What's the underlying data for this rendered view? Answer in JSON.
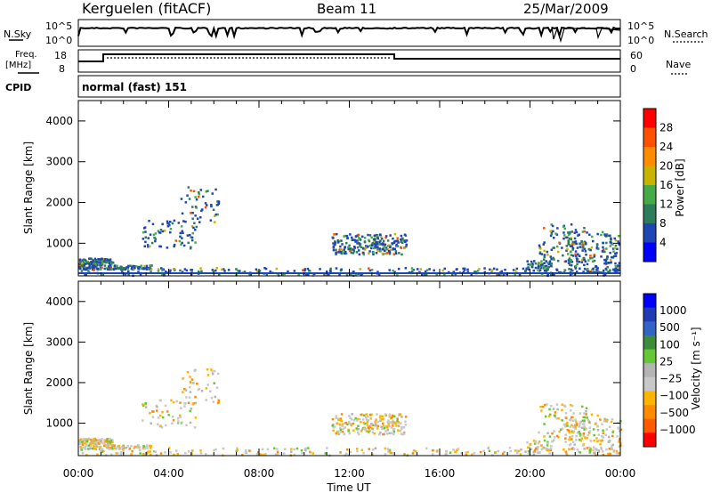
{
  "header": {
    "station": "Kerguelen (fitACF)",
    "beam": "Beam 11",
    "date": "25/Mar/2009"
  },
  "noise_panel": {
    "left_label": "N.Sky",
    "right_label": "N.Search",
    "left_ticks": [
      "10^5",
      "10^0"
    ],
    "right_ticks": [
      "10^5",
      "10^0"
    ]
  },
  "freq_panel": {
    "left_label_1": "Freq.",
    "left_label_2": "[MHz]",
    "right_label": "Nave",
    "left_ticks": [
      "18",
      "8"
    ],
    "right_ticks": [
      "60",
      "0"
    ]
  },
  "cpid": {
    "label": "CPID",
    "program": "normal (fast) 151"
  },
  "colors": {
    "power_scale": [
      "#0000ff",
      "#1e46b4",
      "#2e7d5a",
      "#46aa46",
      "#c8b400",
      "#ff8c00",
      "#ff5000",
      "#ff0000"
    ],
    "velocity_scale": [
      "#ff0000",
      "#ff5a00",
      "#ff8c00",
      "#ffb400",
      "#c8c8c8",
      "#b4b4b4",
      "#64c832",
      "#3c8c3c",
      "#3264c8",
      "#1e3cb4",
      "#0000ff"
    ]
  },
  "chart_data": [
    {
      "type": "heatmap",
      "name": "power-panel",
      "ylabel": "Slant Range [km]",
      "xlabel": "",
      "x_ticks": [],
      "y_ticks": [
        "1000",
        "2000",
        "3000",
        "4000"
      ],
      "colorbar_label": "Power [dB]",
      "colorbar_ticks": [
        "4",
        "8",
        "12",
        "16",
        "20",
        "24",
        "28"
      ],
      "xlim": [
        0,
        24
      ],
      "ylim": [
        200,
        4500
      ]
    },
    {
      "type": "heatmap",
      "name": "velocity-panel",
      "ylabel": "Slant Range [km]",
      "xlabel": "Time UT",
      "x_ticks": [
        "00:00",
        "04:00",
        "08:00",
        "12:00",
        "16:00",
        "20:00",
        "00:00"
      ],
      "y_ticks": [
        "1000",
        "2000",
        "3000",
        "4000"
      ],
      "colorbar_label": "Velocity [m s⁻¹]",
      "colorbar_ticks": [
        "1000",
        "500",
        "100",
        "25",
        "−25",
        "−100",
        "−500",
        "−1000"
      ],
      "xlim": [
        0,
        24
      ],
      "ylim": [
        200,
        4500
      ]
    }
  ]
}
